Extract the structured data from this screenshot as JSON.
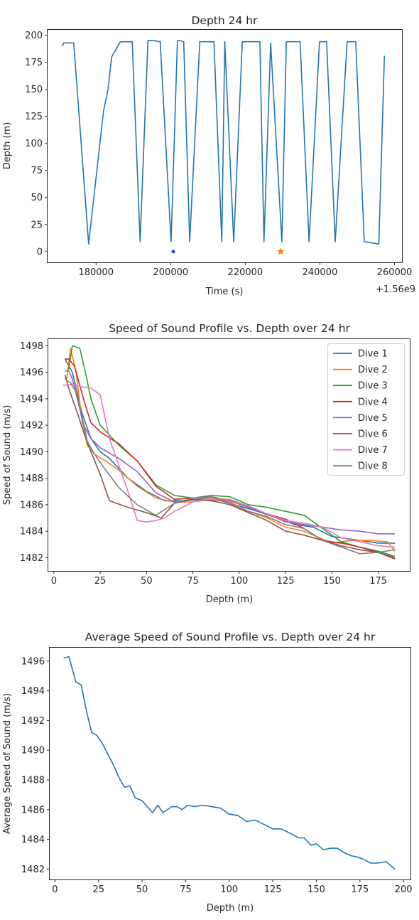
{
  "colors": {
    "c0": "#1f77b4",
    "c1": "#ff7f0e",
    "c2": "#2ca02c",
    "c3": "#d62728",
    "c4": "#9467bd",
    "c5": "#8c564b",
    "c6": "#e377c2",
    "c7": "#7f7f7f"
  },
  "chart_data": [
    {
      "type": "line",
      "title": "Depth 24 hr",
      "xlabel": "Time (s)",
      "ylabel": "Depth (m)",
      "x_offset_label": "+1.56e9",
      "xlim": [
        167000,
        262000
      ],
      "ylim": [
        -10,
        205
      ],
      "xticks": [
        180000,
        200000,
        220000,
        240000,
        260000
      ],
      "yticks": [
        0,
        25,
        50,
        75,
        100,
        125,
        150,
        175,
        200
      ],
      "grid": false,
      "series": [
        {
          "color": "c0",
          "x": [
            171000,
            171300,
            174000,
            178000,
            182000,
            183200,
            184200,
            186500,
            188500,
            189400,
            189700,
            191800,
            193900,
            195500,
            197200,
            200100,
            201800,
            202600,
            203500,
            205100,
            207800,
            210000,
            211600,
            213700,
            214500,
            216900,
            219200,
            220700,
            223900,
            225000,
            226800,
            229800,
            231000,
            233500,
            234700,
            237100,
            239900,
            240400,
            241800,
            244100,
            247300,
            249200,
            249600,
            251900,
            255800,
            257300
          ],
          "y": [
            190,
            193,
            193,
            7,
            130,
            150,
            180,
            194,
            194,
            194,
            194,
            9,
            195,
            195,
            194,
            9,
            195,
            195,
            194,
            9,
            194,
            194,
            194,
            9,
            194,
            9,
            194,
            194,
            194,
            9,
            193,
            9,
            194,
            194,
            194,
            9,
            194,
            194,
            194,
            9,
            194,
            194,
            194,
            9,
            7,
            181
          ]
        }
      ],
      "markers": [
        {
          "x": 200700,
          "y": 0,
          "shape": "dot",
          "color": "#3b3bff"
        },
        {
          "x": 229500,
          "y": 0,
          "shape": "star",
          "color": "c1"
        }
      ]
    },
    {
      "type": "line",
      "title": "Speed of Sound Profile vs. Depth over 24 hr",
      "xlabel": "Depth (m)",
      "ylabel": "Speed of Sound (m/s)",
      "xlim": [
        -3,
        192
      ],
      "ylim": [
        1481,
        1498.5
      ],
      "xticks": [
        0,
        25,
        50,
        75,
        100,
        125,
        150,
        175
      ],
      "yticks": [
        1482,
        1484,
        1486,
        1488,
        1490,
        1492,
        1494,
        1496,
        1498
      ],
      "grid": false,
      "legend_position": "top-right",
      "series": [
        {
          "name": "Dive 1",
          "color": "c0",
          "x": [
            6,
            10,
            15,
            20,
            25,
            30,
            40,
            50,
            60,
            70,
            80,
            90,
            100,
            110,
            120,
            130,
            140,
            150,
            160,
            170,
            175,
            184
          ],
          "y": [
            1497,
            1496,
            1493,
            1491,
            1490,
            1489.5,
            1488,
            1487,
            1486.3,
            1486.3,
            1486.4,
            1486.3,
            1485.9,
            1485.5,
            1485,
            1484.5,
            1484.3,
            1483.6,
            1483.4,
            1483.2,
            1483.1,
            1483.1
          ]
        },
        {
          "name": "Dive 2",
          "color": "c1",
          "x": [
            7,
            9,
            12,
            15,
            18,
            22,
            28,
            35,
            45,
            55,
            65,
            75,
            85,
            95,
            105,
            115,
            125,
            135,
            145,
            150,
            160,
            170,
            180,
            184
          ],
          "y": [
            1495.5,
            1497.8,
            1496,
            1492.5,
            1490.5,
            1489.8,
            1489.3,
            1488.6,
            1487.4,
            1486.5,
            1486.2,
            1486.2,
            1486.4,
            1486.2,
            1485.5,
            1485,
            1484.3,
            1484,
            1483.4,
            1483.1,
            1483.3,
            1483.3,
            1483.2,
            1482.5
          ]
        },
        {
          "name": "Dive 3",
          "color": "c2",
          "x": [
            8,
            10,
            14,
            17,
            20,
            25,
            35,
            45,
            55,
            65,
            75,
            85,
            95,
            105,
            115,
            125,
            135,
            145,
            155,
            165,
            175,
            184
          ],
          "y": [
            1496.2,
            1498,
            1497.8,
            1496,
            1494,
            1492,
            1490.5,
            1489.3,
            1487.5,
            1486.7,
            1486.5,
            1486.7,
            1486.6,
            1486,
            1485.8,
            1485.5,
            1485.2,
            1484.2,
            1483.2,
            1482.8,
            1482.5,
            1482.1
          ]
        },
        {
          "name": "Dive 4",
          "color": "c3",
          "x": [
            6,
            8,
            11,
            14,
            17,
            20,
            25,
            35,
            45,
            55,
            65,
            75,
            85,
            95,
            105,
            115,
            125,
            135,
            145,
            155,
            165,
            175,
            184
          ],
          "y": [
            1497,
            1497,
            1496.5,
            1495,
            1493.5,
            1492.2,
            1491.5,
            1490.6,
            1489.3,
            1487.4,
            1486.4,
            1486.5,
            1486.6,
            1486.3,
            1485.8,
            1485.3,
            1484.9,
            1484.2,
            1483.3,
            1483.1,
            1482.8,
            1482.4,
            1481.9
          ]
        },
        {
          "name": "Dive 5",
          "color": "c4",
          "x": [
            6,
            8,
            10,
            13,
            16,
            20,
            25,
            35,
            45,
            55,
            65,
            75,
            85,
            95,
            105,
            115,
            125,
            135,
            145,
            155,
            165,
            175,
            184
          ],
          "y": [
            1496.1,
            1496.1,
            1495.5,
            1493.8,
            1492,
            1491,
            1490.3,
            1489.5,
            1488.5,
            1486.9,
            1486.2,
            1486.4,
            1486.5,
            1486.3,
            1485.8,
            1485.3,
            1484.7,
            1484.5,
            1484.3,
            1484.1,
            1484,
            1483.8,
            1483.8
          ]
        },
        {
          "name": "Dive 6",
          "color": "c5",
          "x": [
            6,
            8,
            10,
            13,
            16,
            20,
            25,
            30,
            40,
            50,
            58,
            65,
            75,
            85,
            95,
            105,
            115,
            125,
            135,
            145,
            155,
            165,
            175,
            184
          ],
          "y": [
            1495.8,
            1494.8,
            1494,
            1492.8,
            1491.5,
            1490,
            1488.3,
            1486.3,
            1485.8,
            1485.4,
            1485,
            1486.1,
            1486.4,
            1486.3,
            1486,
            1485.4,
            1484.8,
            1484,
            1483.7,
            1483.3,
            1482.9,
            1482.6,
            1482.4,
            1482
          ]
        },
        {
          "name": "Dive 7",
          "color": "c6",
          "x": [
            5,
            10,
            15,
            20,
            25,
            30,
            35,
            40,
            45,
            50,
            55,
            60,
            65,
            75,
            85,
            95,
            105,
            115,
            125,
            135,
            145,
            155,
            165,
            175,
            184
          ],
          "y": [
            1495,
            1495.1,
            1494.9,
            1494.8,
            1494.3,
            1491,
            1489,
            1487,
            1484.8,
            1484.7,
            1484.8,
            1485,
            1485.5,
            1486.2,
            1486.5,
            1486.4,
            1485.9,
            1485.3,
            1484.8,
            1484.6,
            1484.3,
            1483.5,
            1483.2,
            1482.9,
            1482.8
          ]
        },
        {
          "name": "Dive 8",
          "color": "c7",
          "x": [
            6,
            9,
            12,
            15,
            18,
            22,
            27,
            35,
            45,
            55,
            65,
            75,
            85,
            95,
            105,
            115,
            125,
            135,
            145,
            155,
            165,
            175,
            184
          ],
          "y": [
            1495.5,
            1495.2,
            1494.5,
            1492.8,
            1490.8,
            1489.8,
            1488.8,
            1487.3,
            1486,
            1485.2,
            1486.1,
            1486.5,
            1486.6,
            1486.1,
            1485.5,
            1485.1,
            1484.5,
            1484.2,
            1483.3,
            1482.8,
            1482.3,
            1482.4,
            1482.6
          ]
        }
      ]
    },
    {
      "type": "line",
      "title": "Average Speed of Sound Profile vs. Depth over 24 hr",
      "xlabel": "Depth (m)",
      "ylabel": "Average Speed of Sound (m/s)",
      "xlim": [
        -3,
        204
      ],
      "ylim": [
        1481.3,
        1496.9
      ],
      "xticks": [
        0,
        25,
        50,
        75,
        100,
        125,
        150,
        175,
        200
      ],
      "yticks": [
        1482,
        1484,
        1486,
        1488,
        1490,
        1492,
        1494,
        1496
      ],
      "grid": false,
      "series": [
        {
          "color": "c0",
          "x": [
            5,
            8,
            12,
            15,
            18,
            21,
            24,
            27,
            31,
            34,
            37,
            40,
            43,
            46,
            50,
            53,
            56,
            59,
            62,
            67,
            70,
            73,
            76,
            80,
            85,
            90,
            95,
            100,
            105,
            110,
            115,
            120,
            125,
            130,
            135,
            140,
            143,
            147,
            150,
            154,
            158,
            162,
            166,
            170,
            174,
            178,
            181,
            185,
            190,
            195
          ],
          "y": [
            1496.2,
            1496.3,
            1494.6,
            1494.4,
            1492.7,
            1491.2,
            1491,
            1490.5,
            1489.6,
            1488.9,
            1488.1,
            1487.5,
            1487.6,
            1486.8,
            1486.6,
            1486.2,
            1485.8,
            1486.3,
            1485.8,
            1486.2,
            1486.2,
            1486.0,
            1486.3,
            1486.2,
            1486.3,
            1486.2,
            1486.1,
            1485.7,
            1485.6,
            1485.2,
            1485.3,
            1485.0,
            1484.7,
            1484.7,
            1484.4,
            1484.1,
            1484.1,
            1483.6,
            1483.7,
            1483.3,
            1483.4,
            1483.4,
            1483.1,
            1482.9,
            1482.8,
            1482.6,
            1482.4,
            1482.4,
            1482.5,
            1482.0
          ]
        }
      ]
    }
  ]
}
